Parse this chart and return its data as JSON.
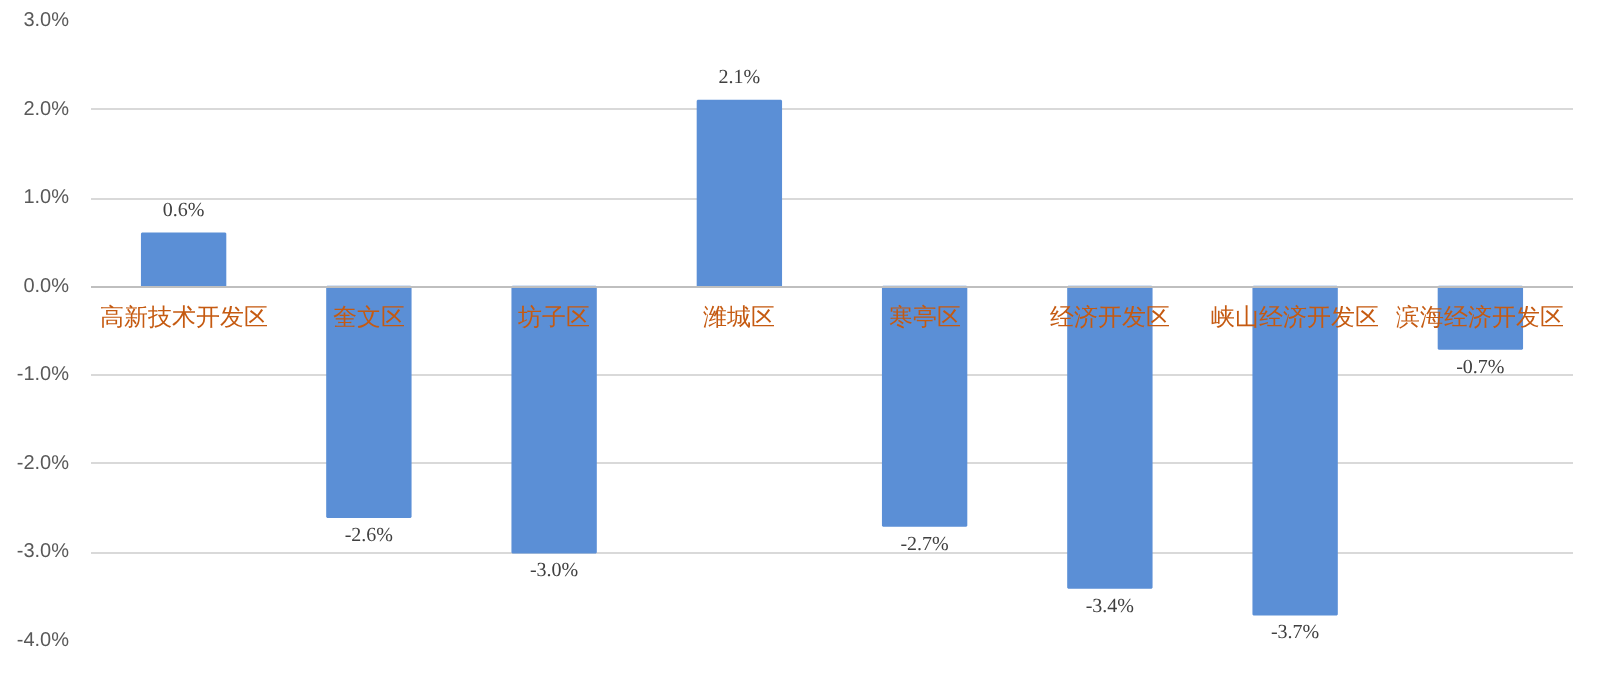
{
  "chart_data": {
    "type": "bar",
    "categories": [
      "高新技术开发区",
      "奎文区",
      "坊子区",
      "潍城区",
      "寒亭区",
      "经济开发区",
      "峡山经济开发区",
      "滨海经济开发区"
    ],
    "values": [
      0.6,
      -2.6,
      -3.0,
      2.1,
      -2.7,
      -3.4,
      -3.7,
      -0.7
    ],
    "color": "#5b8fd6",
    "value_labels": [
      "0.6%",
      "-2.6%",
      "-3.0%",
      "2.1%",
      "-2.7%",
      "-3.4%",
      "-3.7%",
      "-0.7%"
    ],
    "ylim": [
      -4,
      3
    ],
    "yticks": [
      {
        "value": -4,
        "label": "-4.0%"
      },
      {
        "value": -3,
        "label": "-3.0%"
      },
      {
        "value": -2,
        "label": "-2.0%"
      },
      {
        "value": -1,
        "label": "-1.0%"
      },
      {
        "value": 0,
        "label": "0.0%"
      },
      {
        "value": 1,
        "label": "1.0%"
      },
      {
        "value": 2,
        "label": "2.0%"
      },
      {
        "value": 3,
        "label": "3.0%"
      }
    ],
    "grid": "y"
  }
}
